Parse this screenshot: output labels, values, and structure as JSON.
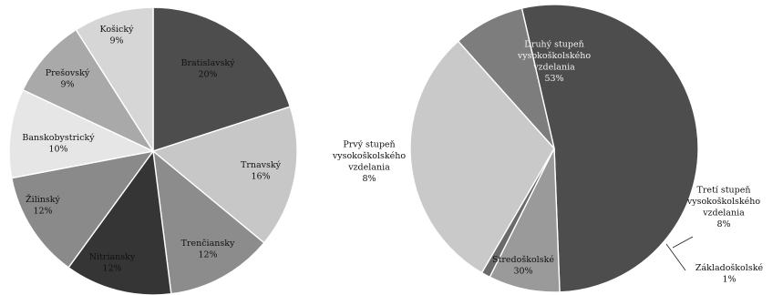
{
  "chart_data": [
    {
      "type": "pie",
      "title": "",
      "categories": [
        "Bratislavský",
        "Trnavský",
        "Trenčiansky",
        "Nitriansky",
        "Žilinský",
        "Banskobystrický",
        "Prešovský",
        "Košický"
      ],
      "values": [
        20,
        16,
        12,
        12,
        12,
        10,
        9,
        9
      ],
      "labels": [
        "20%",
        "16%",
        "12%",
        "12%",
        "12%",
        "10%",
        "9%",
        "9%"
      ],
      "colors": [
        "#4d4d4d",
        "#c7c7c7",
        "#8c8c8c",
        "#353535",
        "#8a8a8a",
        "#e6e6e6",
        "#a9a9a9",
        "#d6d6d6"
      ],
      "start_angle": 0,
      "direction": "clockwise"
    },
    {
      "type": "pie",
      "title": "",
      "categories": [
        "Druhý stupeň vysokoškolského vzdelania",
        "Tretí stupeň vysokoškolského vzdelania",
        "Základoškolské",
        "Stredoškolské",
        "Prvý stupeň vysokoškolského vzdelania"
      ],
      "values": [
        53,
        8,
        1,
        30,
        8
      ],
      "labels": [
        "53%",
        "8%",
        "1%",
        "30%",
        "8%"
      ],
      "colors": [
        "#4d4d4d",
        "#9a9a9a",
        "#6a6a6a",
        "#c9c9c9",
        "#7d7d7d"
      ],
      "start_angle": -13,
      "direction": "clockwise"
    }
  ]
}
